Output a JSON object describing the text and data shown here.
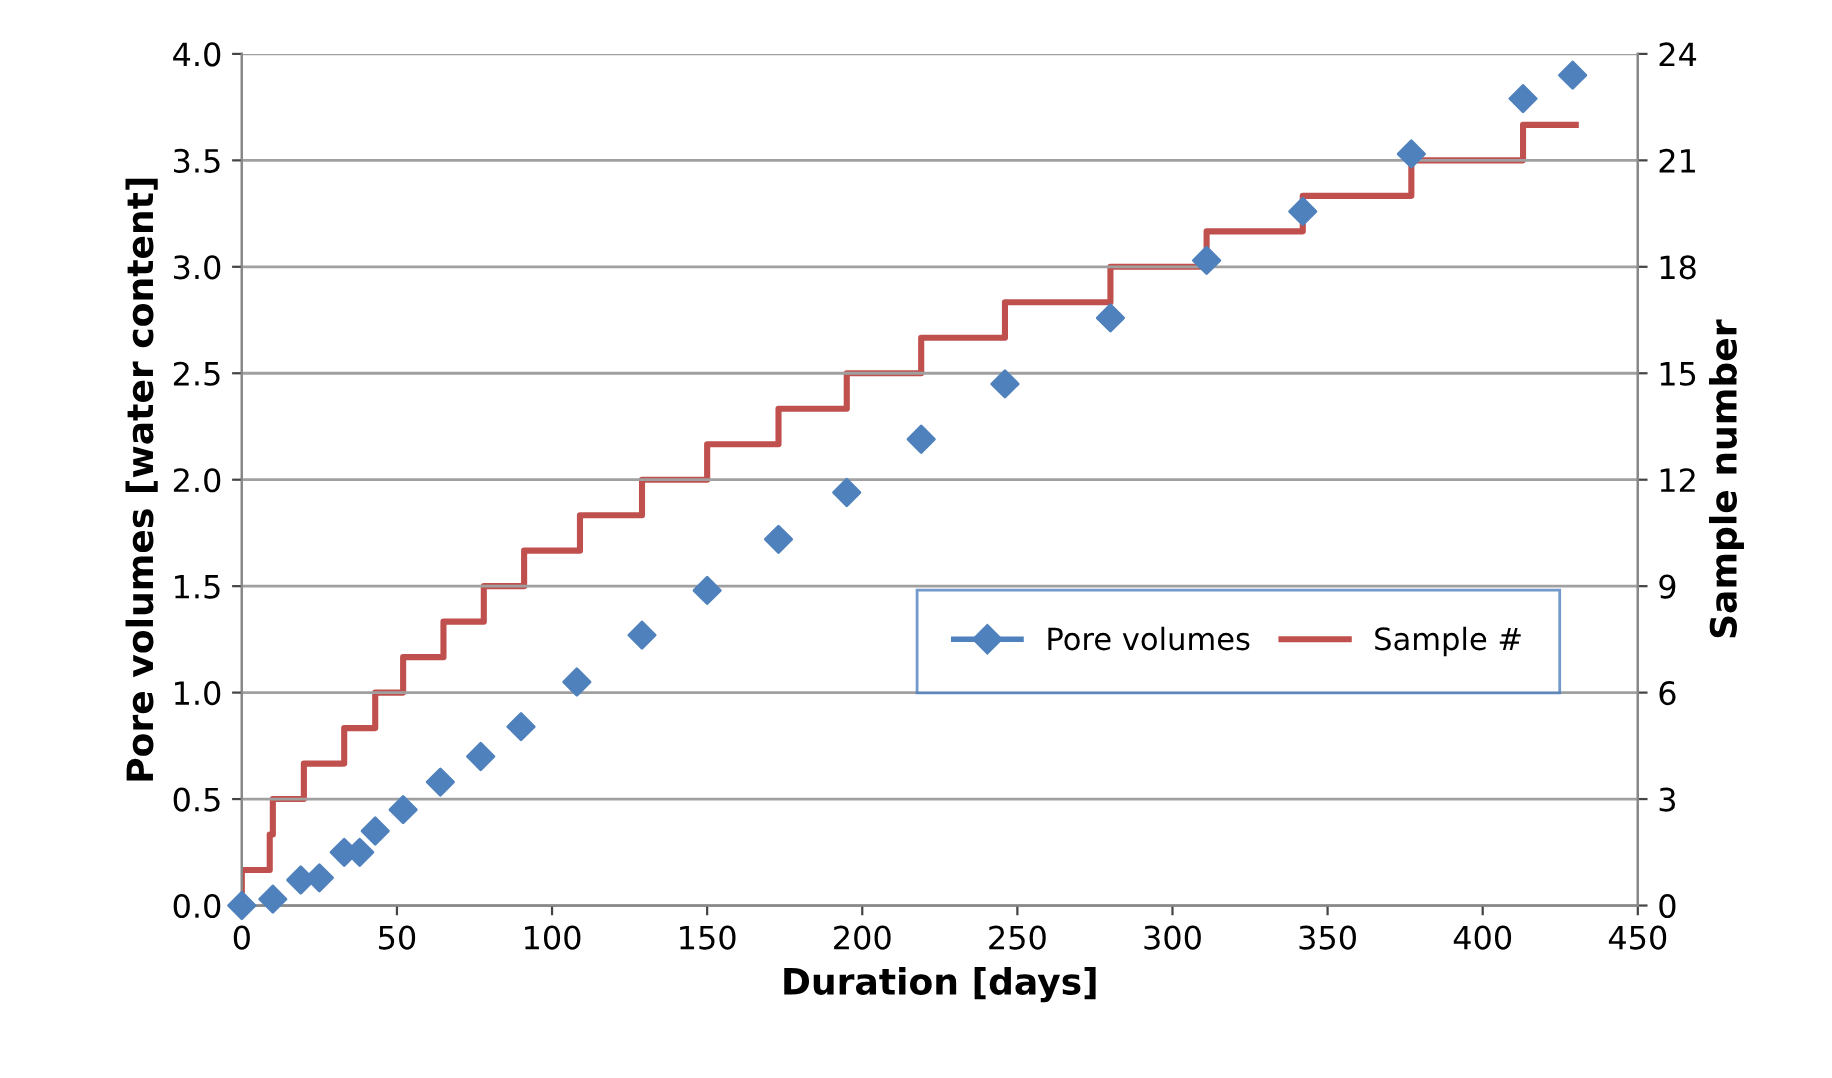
{
  "chart_data": {
    "type": "scatter",
    "xlabel": "Duration [days]",
    "ylabel": "Pore volumes [water content]",
    "y2label": "Sample number",
    "xlim": [
      0,
      450
    ],
    "xticks": [
      0,
      50,
      100,
      150,
      200,
      250,
      300,
      350,
      400,
      450
    ],
    "ylim": [
      0,
      4.0
    ],
    "yticks": [
      {
        "value": 0,
        "label": "0.0"
      },
      {
        "value": 0.5,
        "label": "0.5"
      },
      {
        "value": 1,
        "label": "1.0"
      },
      {
        "value": 1.5,
        "label": "1.5"
      },
      {
        "value": 2,
        "label": "2.0"
      },
      {
        "value": 2.5,
        "label": "2.5"
      },
      {
        "value": 3,
        "label": "3.0"
      },
      {
        "value": 3.5,
        "label": "3.5"
      },
      {
        "value": 4,
        "label": "4.0"
      }
    ],
    "y2lim": [
      0,
      24
    ],
    "y2ticks": [
      0,
      3,
      6,
      9,
      12,
      15,
      18,
      21,
      24
    ],
    "grid": "y",
    "legend": "right",
    "series": [
      {
        "name": "Pore volumes",
        "marker": "diamond",
        "color": "#4f81bd",
        "x": [
          0,
          9,
          10,
          19,
          25,
          33,
          38,
          43,
          52,
          64,
          77,
          90,
          108,
          129,
          150,
          173,
          195,
          219,
          246,
          280,
          311,
          342,
          377,
          413,
          429
        ],
        "values": [
          0,
          null,
          0.03,
          0.12,
          0.13,
          0.25,
          0.25,
          0.35,
          0.45,
          0.58,
          0.7,
          0.84,
          1.05,
          1.27,
          1.48,
          1.72,
          1.94,
          2.19,
          2.45,
          2.76,
          3.03,
          3.26,
          3.53,
          3.79,
          3.9
        ]
      },
      {
        "name": "Sample #",
        "type": "step",
        "marker": "none",
        "axis": "y2",
        "color": "#c0504d",
        "x": [
          0,
          0,
          9,
          10,
          20,
          33,
          43,
          52,
          65,
          78,
          91,
          109,
          129,
          150,
          173,
          195,
          219,
          246,
          280,
          311,
          342,
          377,
          413,
          430
        ],
        "values": [
          0,
          1,
          2,
          3,
          4,
          5,
          6,
          7,
          8,
          9,
          10,
          11,
          12,
          13,
          14,
          15,
          16,
          17,
          18,
          19,
          20,
          21,
          22,
          22
        ]
      }
    ]
  }
}
